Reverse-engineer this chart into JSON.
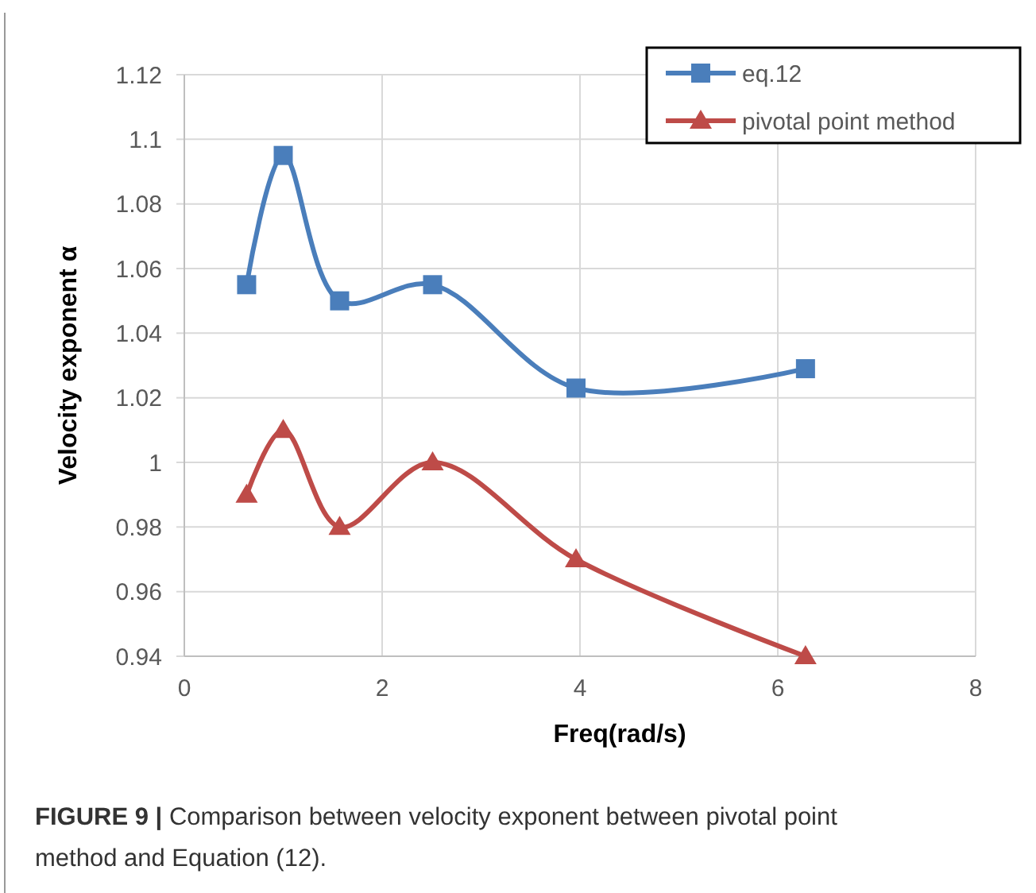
{
  "chart_data": {
    "type": "line",
    "xlabel": "Freq(rad/s)",
    "ylabel": "Velocity exponent  α",
    "x": [
      0.63,
      1,
      1.57,
      2.51,
      3.96,
      6.28
    ],
    "series": [
      {
        "name": "eq.12",
        "color": "#4a7ebb",
        "marker": "square",
        "values": [
          1.055,
          1.095,
          1.05,
          1.055,
          1.023,
          1.029
        ]
      },
      {
        "name": "pivotal point method",
        "color": "#be4b48",
        "marker": "triangle",
        "values": [
          0.99,
          1.01,
          0.98,
          1.0,
          0.97,
          0.94
        ]
      }
    ],
    "xlim": [
      0,
      8
    ],
    "xticks": [
      0,
      2,
      4,
      6,
      8
    ],
    "ylim": [
      0.94,
      1.12
    ],
    "yticks": [
      0.94,
      0.96,
      0.98,
      1,
      1.02,
      1.04,
      1.06,
      1.08,
      1.1,
      1.12
    ],
    "grid": true,
    "legend": "top right",
    "annotations": [
      "FIGURE 9 | Comparison between velocity exponent between pivotal point method and Equation (12)."
    ]
  }
}
